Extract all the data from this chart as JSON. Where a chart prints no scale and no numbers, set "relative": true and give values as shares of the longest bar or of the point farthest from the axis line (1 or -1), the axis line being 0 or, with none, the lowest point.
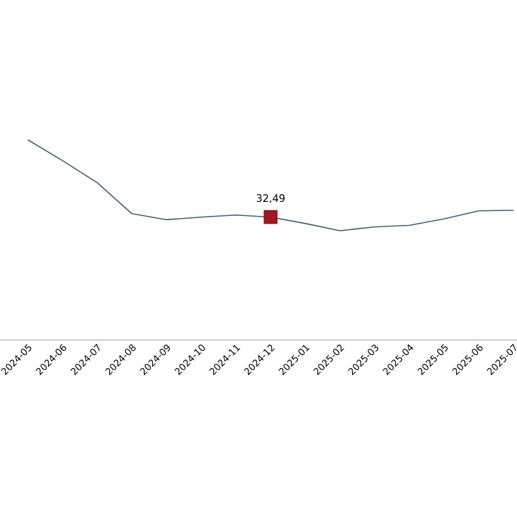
{
  "chart_data": {
    "type": "line",
    "relative": true,
    "categories": [
      "2024-05",
      "2024-06",
      "2024-07",
      "2024-08",
      "2024-09",
      "2024-10",
      "2024-11",
      "2024-12",
      "2025-01",
      "2025-02",
      "2025-03",
      "2025-04",
      "2025-05",
      "2025-06",
      "2025-07"
    ],
    "tick_labels": "x",
    "annotations": [
      {
        "text": "32,49",
        "x": "2024-12",
        "y": 0.614
      }
    ],
    "series": [
      {
        "color": "#3d5f73",
        "values": [
          1,
          0.896,
          0.786,
          0.631,
          0.601,
          0.614,
          0.624,
          0.614,
          0.582,
          0.546,
          0.565,
          0.573,
          0.605,
          0.645,
          0.648
        ]
      },
      {
        "type": "scatter",
        "color": "#a01820",
        "marker": "square",
        "values": [
          null,
          null,
          null,
          null,
          null,
          null,
          null,
          0.614,
          null,
          null,
          null,
          null,
          null,
          null,
          null
        ]
      }
    ]
  }
}
